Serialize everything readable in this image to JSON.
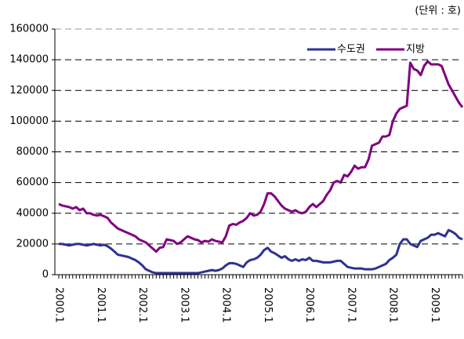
{
  "chart_data": {
    "type": "line",
    "unit": "(단위 : 호)",
    "categories": [
      "2000.1",
      null,
      null,
      null,
      null,
      null,
      null,
      null,
      null,
      null,
      null,
      null,
      "2001.1",
      null,
      null,
      null,
      null,
      null,
      null,
      null,
      null,
      null,
      null,
      null,
      "2002.1",
      null,
      null,
      null,
      null,
      null,
      null,
      null,
      null,
      null,
      null,
      null,
      "2003.1",
      null,
      null,
      null,
      null,
      null,
      null,
      null,
      null,
      null,
      null,
      null,
      "2004.1",
      null,
      null,
      null,
      null,
      null,
      null,
      null,
      null,
      null,
      null,
      null,
      "2005.1",
      null,
      null,
      null,
      null,
      null,
      null,
      null,
      null,
      null,
      null,
      null,
      "2006.1",
      null,
      null,
      null,
      null,
      null,
      null,
      null,
      null,
      null,
      null,
      null,
      "2007.1",
      null,
      null,
      null,
      null,
      null,
      null,
      null,
      null,
      null,
      null,
      null,
      "2008.1",
      null,
      null,
      null,
      null,
      null,
      null,
      null,
      null,
      null,
      null,
      null,
      "2009.1",
      null,
      null,
      null,
      null,
      null,
      null,
      null,
      null
    ],
    "series": [
      {
        "name": "수도권",
        "color": "#2e3192",
        "values": [
          20000,
          20000,
          19500,
          19000,
          19500,
          20000,
          20000,
          19500,
          19000,
          19500,
          20000,
          19500,
          19000,
          19500,
          18500,
          17000,
          15000,
          13000,
          12500,
          12000,
          11500,
          10500,
          9500,
          8000,
          6000,
          3500,
          2500,
          1500,
          1000,
          1000,
          1000,
          1000,
          1000,
          1000,
          1000,
          1000,
          1000,
          1000,
          1000,
          1000,
          1000,
          1500,
          2000,
          2500,
          3000,
          2500,
          3000,
          4000,
          6000,
          7500,
          7500,
          7000,
          6000,
          5000,
          8000,
          9500,
          10000,
          11000,
          13000,
          16000,
          17500,
          15000,
          14000,
          12500,
          11000,
          12000,
          10000,
          9000,
          10000,
          9000,
          10000,
          9500,
          11000,
          9000,
          9000,
          8500,
          8000,
          8000,
          8000,
          8500,
          9000,
          9000,
          7000,
          5000,
          4500,
          4000,
          4000,
          4000,
          3500,
          3500,
          3500,
          4000,
          5000,
          6000,
          7000,
          9500,
          11000,
          13000,
          20000,
          23000,
          23000,
          20000,
          19000,
          18000,
          22000,
          23000,
          24000,
          26000,
          26000,
          27000,
          26000,
          25000,
          29000,
          28000,
          26500,
          24000,
          23000
        ]
      },
      {
        "name": "지방",
        "color": "#800080",
        "values": [
          46000,
          45000,
          44500,
          44000,
          43000,
          44000,
          42000,
          43000,
          40000,
          40000,
          39000,
          38500,
          39000,
          38000,
          37000,
          34000,
          32000,
          30000,
          29000,
          28000,
          27000,
          26000,
          25000,
          23000,
          22000,
          21000,
          19000,
          17000,
          15000,
          17500,
          18000,
          23000,
          22500,
          22000,
          20000,
          21000,
          23000,
          25000,
          24000,
          23000,
          22500,
          21000,
          22000,
          21500,
          23000,
          22000,
          21500,
          21000,
          25000,
          32000,
          33000,
          32500,
          34000,
          35000,
          37000,
          40000,
          38500,
          39000,
          41000,
          46000,
          53000,
          53000,
          51000,
          48000,
          45000,
          43000,
          42000,
          41000,
          42000,
          40500,
          40000,
          41000,
          44000,
          46000,
          44000,
          46000,
          48000,
          52000,
          55000,
          60000,
          61000,
          60000,
          65000,
          64000,
          67000,
          71000,
          69000,
          70000,
          70000,
          75000,
          84000,
          85000,
          86000,
          90000,
          90000,
          91000,
          100000,
          105000,
          108000,
          109000,
          110000,
          138000,
          134000,
          133000,
          130000,
          136000,
          139000,
          137000,
          137000,
          137000,
          136000,
          130000,
          124000,
          120000,
          116000,
          112000,
          109000
        ]
      }
    ],
    "ylim": [
      0,
      160000
    ],
    "yticks": [
      0,
      20000,
      40000,
      60000,
      80000,
      100000,
      120000,
      140000,
      160000
    ],
    "grid": true,
    "legend": "top-right"
  }
}
